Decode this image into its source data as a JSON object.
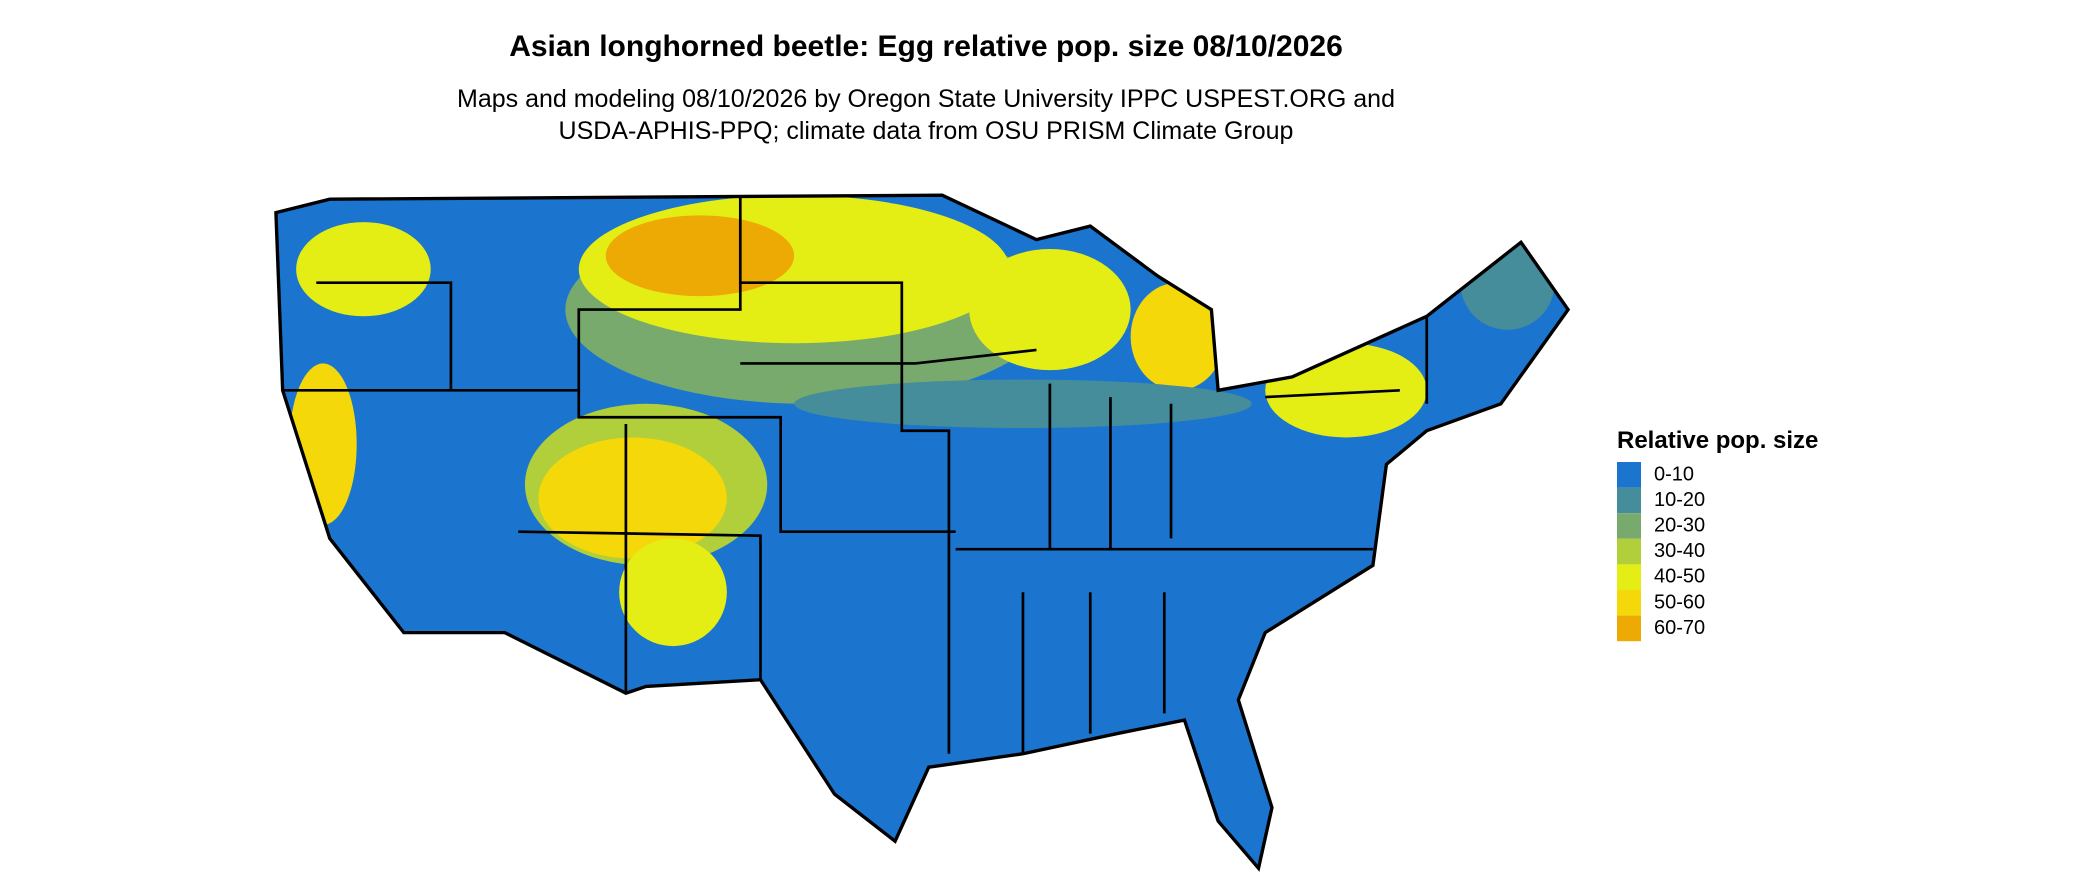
{
  "header": {
    "title": "Asian longhorned beetle: Egg relative pop. size 08/10/2026",
    "subtitle": [
      "Maps and modeling 08/10/2026 by Oregon State University IPPC USPEST.ORG and",
      "USDA-APHIS-PPQ; climate data from OSU PRISM Climate Group"
    ]
  },
  "legend": {
    "title": "Relative pop. size",
    "items": [
      {
        "label": "0-10",
        "color": "#1b75cf"
      },
      {
        "label": "10-20",
        "color": "#468d9b"
      },
      {
        "label": "20-30",
        "color": "#79aa6d"
      },
      {
        "label": "30-40",
        "color": "#b0cf3a"
      },
      {
        "label": "40-50",
        "color": "#e4ee14"
      },
      {
        "label": "50-60",
        "color": "#f4d80a"
      },
      {
        "label": "60-70",
        "color": "#eda904"
      }
    ]
  }
}
